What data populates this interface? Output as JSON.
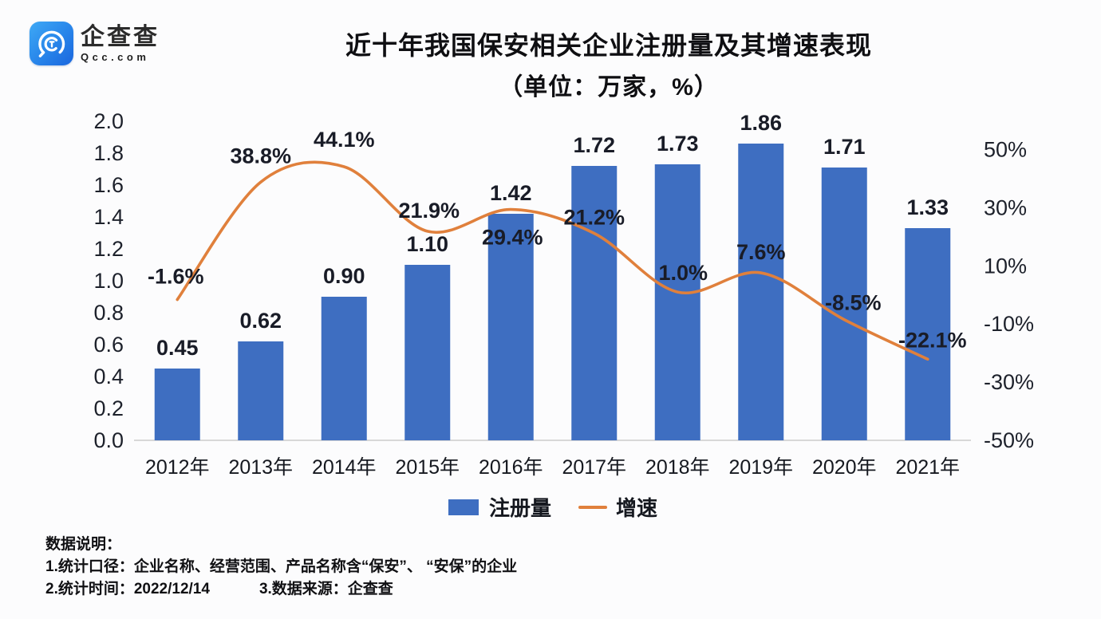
{
  "logo": {
    "name": "企查查",
    "domain": "Qcc.com"
  },
  "title": {
    "line1": "近十年我国保安相关企业注册量及其增速表现",
    "line2": "（单位：万家，%）"
  },
  "chart_data": {
    "type": "bar+line combo",
    "categories": [
      "2012年",
      "2013年",
      "2014年",
      "2015年",
      "2016年",
      "2017年",
      "2018年",
      "2019年",
      "2020年",
      "2021年"
    ],
    "series": [
      {
        "name": "注册量",
        "type": "bar",
        "values": [
          0.45,
          0.62,
          0.9,
          1.1,
          1.42,
          1.72,
          1.73,
          1.86,
          1.71,
          1.33
        ],
        "labels": [
          "0.45",
          "0.62",
          "0.90",
          "1.10",
          "1.42",
          "1.72",
          "1.73",
          "1.86",
          "1.71",
          "1.33"
        ]
      },
      {
        "name": "增速",
        "type": "line",
        "values": [
          -1.6,
          38.8,
          44.1,
          21.9,
          29.4,
          21.2,
          1.0,
          7.6,
          -8.5,
          -22.1
        ],
        "labels": [
          "-1.6%",
          "38.8%",
          "44.1%",
          "21.9%",
          "29.4%",
          "21.2%",
          "1.0%",
          "7.6%",
          "-8.5%",
          "-22.1%"
        ]
      }
    ],
    "left_axis": {
      "ticks": [
        "2.0",
        "1.8",
        "1.6",
        "1.4",
        "1.2",
        "1.0",
        "0.8",
        "0.6",
        "0.4",
        "0.2",
        "0.0"
      ],
      "values": [
        2.0,
        1.8,
        1.6,
        1.4,
        1.2,
        1.0,
        0.8,
        0.6,
        0.4,
        0.2,
        0.0
      ],
      "range": [
        0,
        2.0
      ]
    },
    "right_axis": {
      "ticks": [
        "50%",
        "30%",
        "10%",
        "-10%",
        "-30%",
        "-50%"
      ],
      "values": [
        50,
        30,
        10,
        -10,
        -30,
        -50
      ],
      "range": [
        -50,
        50
      ]
    },
    "grid": "off",
    "legend_position": "bottom",
    "colors": {
      "bar": "#3e6ec1",
      "line": "#e0803c",
      "label": "#191c27",
      "axis_line": "#d8d8d8"
    },
    "legend": [
      {
        "label": "注册量",
        "marker": "square",
        "color": "#3e6ec1"
      },
      {
        "label": "增速",
        "marker": "line",
        "color": "#e0803c"
      }
    ]
  },
  "notes": {
    "heading": "数据说明：",
    "line1": "1.统计口径：企业名称、经营范围、产品名称含“保安”、 “安保”的企业",
    "line2a": "2.统计时间：2022/12/14",
    "line2b": "3.数据来源：企查查"
  }
}
